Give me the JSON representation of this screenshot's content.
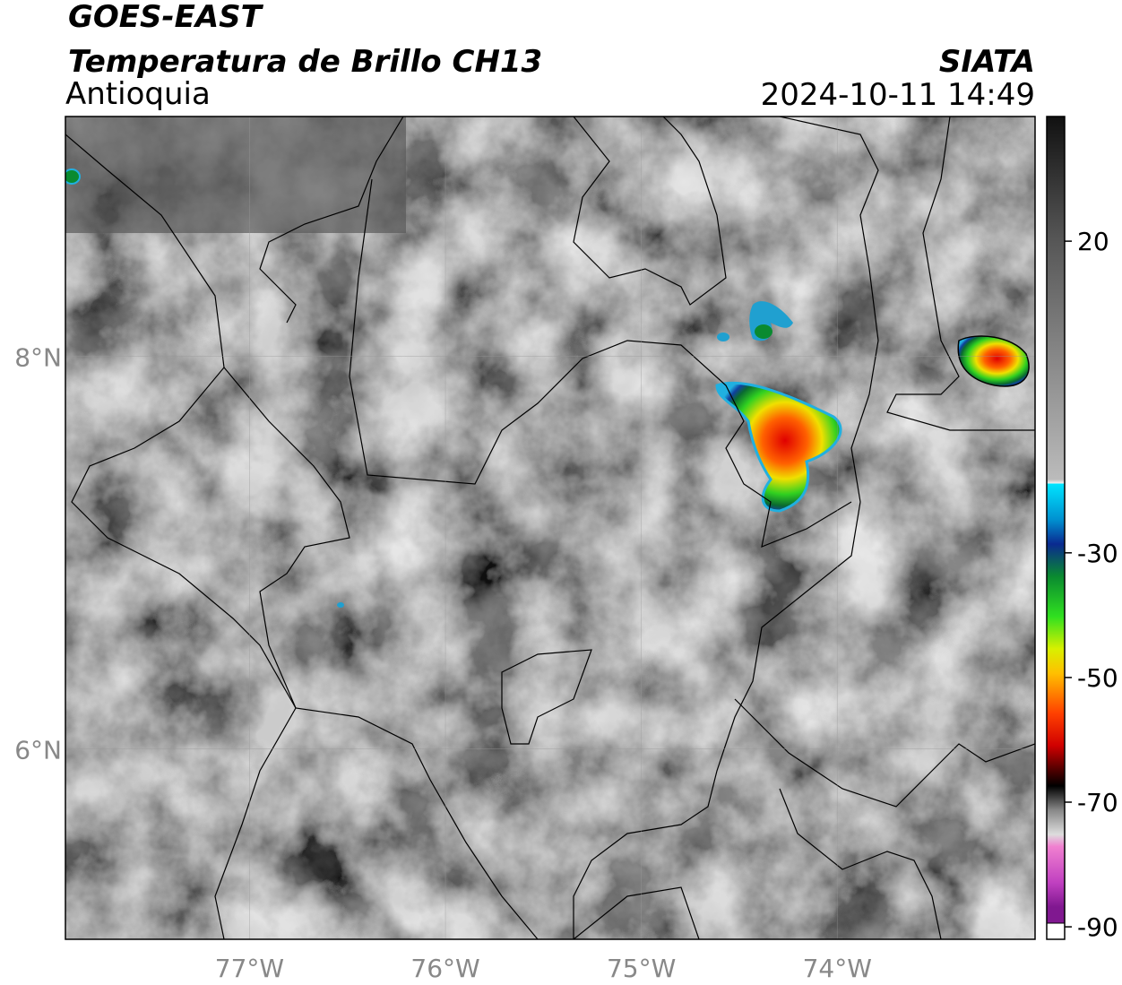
{
  "header": {
    "title": "GOES-EAST",
    "subtitle": "Temperatura de Brillo CH13",
    "region": "Antioquia",
    "source": "SIATA",
    "timestamp": "2024-10-11 14:49"
  },
  "map": {
    "lonlim": [
      -77.94,
      -72.99
    ],
    "latlim": [
      5.03,
      9.22
    ],
    "xticks": [
      {
        "value": -77,
        "label": "77°W"
      },
      {
        "value": -76,
        "label": "76°W"
      },
      {
        "value": -75,
        "label": "75°W"
      },
      {
        "value": -74,
        "label": "74°W"
      }
    ],
    "yticks": [
      {
        "value": 6,
        "label": "6°N"
      },
      {
        "value": 8,
        "label": "8°N"
      }
    ]
  },
  "colorbar": {
    "lim": [
      -92,
      40
    ],
    "ticks": [
      20,
      -30,
      -50,
      -70,
      -90
    ]
  }
}
